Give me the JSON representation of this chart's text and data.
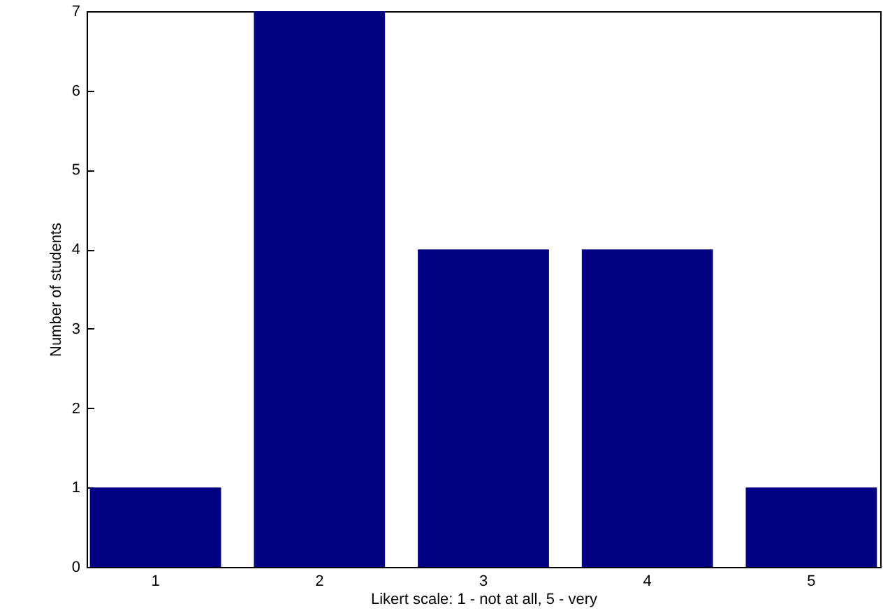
{
  "chart_data": {
    "type": "bar",
    "xlabel": "Likert scale: 1 - not at all, 5 - very",
    "ylabel": "Number of students",
    "categories": [
      "1",
      "2",
      "3",
      "4",
      "5"
    ],
    "values": [
      1,
      7,
      4,
      4,
      1
    ],
    "color": "#000080",
    "ylim": [
      0,
      7
    ],
    "yticks": [
      0,
      1,
      2,
      3,
      4,
      5,
      6,
      7
    ],
    "grid": false
  }
}
